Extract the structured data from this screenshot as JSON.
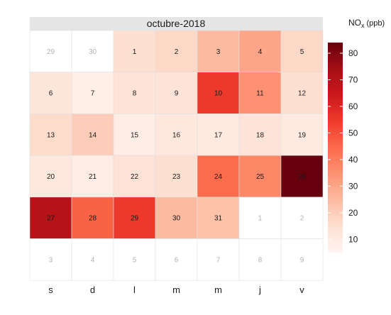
{
  "chart_data": {
    "type": "heatmap",
    "title": "octubre-2018",
    "columns": [
      "s",
      "d",
      "l",
      "m",
      "m",
      "j",
      "v"
    ],
    "legend": {
      "title_main": "NO",
      "title_sub": "x",
      "title_unit": "(ppb)",
      "ticks": [
        10,
        20,
        30,
        40,
        50,
        60,
        70,
        80
      ],
      "range": [
        5,
        84
      ],
      "colors": [
        "#fff5f0",
        "#fee0d2",
        "#fcbba1",
        "#fc9272",
        "#fb6a4a",
        "#ef3b2c",
        "#cb181d",
        "#a50f15",
        "#67000d"
      ]
    },
    "cells": [
      {
        "label": "29",
        "value": null
      },
      {
        "label": "30",
        "value": null
      },
      {
        "label": "1",
        "value": 15
      },
      {
        "label": "2",
        "value": 17
      },
      {
        "label": "3",
        "value": 25
      },
      {
        "label": "4",
        "value": 30
      },
      {
        "label": "5",
        "value": 17
      },
      {
        "label": "6",
        "value": 12
      },
      {
        "label": "7",
        "value": 8
      },
      {
        "label": "8",
        "value": 13
      },
      {
        "label": "9",
        "value": 13
      },
      {
        "label": "10",
        "value": 55
      },
      {
        "label": "11",
        "value": 35
      },
      {
        "label": "12",
        "value": 15
      },
      {
        "label": "13",
        "value": 16
      },
      {
        "label": "14",
        "value": 20
      },
      {
        "label": "15",
        "value": 9
      },
      {
        "label": "16",
        "value": 11
      },
      {
        "label": "17",
        "value": 10
      },
      {
        "label": "18",
        "value": 13
      },
      {
        "label": "19",
        "value": 10
      },
      {
        "label": "20",
        "value": 11
      },
      {
        "label": "21",
        "value": 9
      },
      {
        "label": "22",
        "value": 14
      },
      {
        "label": "23",
        "value": 15
      },
      {
        "label": "24",
        "value": 44
      },
      {
        "label": "25",
        "value": 37
      },
      {
        "label": "26",
        "value": 84
      },
      {
        "label": "27",
        "value": 70
      },
      {
        "label": "28",
        "value": 46
      },
      {
        "label": "29",
        "value": 55
      },
      {
        "label": "30",
        "value": 25
      },
      {
        "label": "31",
        "value": 23
      },
      {
        "label": "1",
        "value": null
      },
      {
        "label": "2",
        "value": null
      },
      {
        "label": "3",
        "value": null
      },
      {
        "label": "4",
        "value": null
      },
      {
        "label": "5",
        "value": null
      },
      {
        "label": "6",
        "value": null
      },
      {
        "label": "7",
        "value": null
      },
      {
        "label": "8",
        "value": null
      },
      {
        "label": "9",
        "value": null
      }
    ]
  }
}
